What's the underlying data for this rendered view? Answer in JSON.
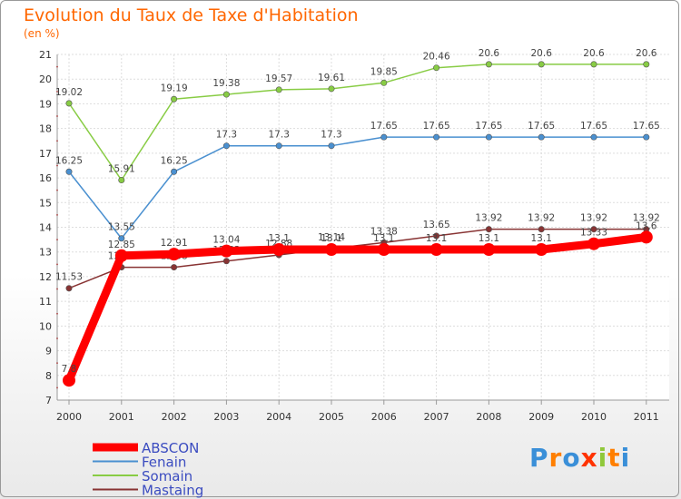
{
  "header": {
    "title": "Evolution du Taux de Taxe d'Habitation",
    "subtitle": "(en %)"
  },
  "logo": {
    "text": "Proxiti",
    "colors": [
      "#3a8fd8",
      "#ff7f00",
      "#3a8fd8",
      "#ff3300",
      "#8fc83a",
      "#ff7f00",
      "#3a8fd8"
    ]
  },
  "chart_data": {
    "type": "line",
    "title": "Evolution du Taux de Taxe d'Habitation",
    "ylabel": "(en %)",
    "xlabel": "",
    "x": [
      "2000",
      "2001",
      "2002",
      "2003",
      "2004",
      "2005",
      "2006",
      "2007",
      "2008",
      "2009",
      "2010",
      "2011"
    ],
    "ylim": [
      7,
      21
    ],
    "yticks": [
      7,
      8,
      9,
      10,
      11,
      12,
      13,
      14,
      15,
      16,
      17,
      18,
      19,
      20,
      21
    ],
    "grid": true,
    "legend_position": "bottom-left",
    "series": [
      {
        "name": "ABSCON",
        "color": "#ff0000",
        "thick": true,
        "values": [
          7.8,
          12.85,
          12.91,
          13.04,
          13.1,
          13.1,
          13.1,
          13.1,
          13.1,
          13.1,
          13.33,
          13.6
        ],
        "labels": [
          "7.8",
          "12.85",
          "12.91",
          "13.04",
          "13.1",
          "13.1",
          "13.1",
          "13.1",
          "13.1",
          "13.1",
          "13.33",
          "13.6"
        ]
      },
      {
        "name": "Fenain",
        "color": "#4a90d0",
        "thick": false,
        "values": [
          16.25,
          13.55,
          16.25,
          17.3,
          17.3,
          17.3,
          17.65,
          17.65,
          17.65,
          17.65,
          17.65,
          17.65
        ],
        "labels": [
          "16.25",
          "13.55",
          "16.25",
          "17.3",
          "17.3",
          "17.3",
          "17.65",
          "17.65",
          "17.65",
          "17.65",
          "17.65",
          "17.65"
        ]
      },
      {
        "name": "Somain",
        "color": "#88cc44",
        "thick": false,
        "values": [
          19.02,
          15.91,
          19.19,
          19.38,
          19.57,
          19.61,
          19.85,
          20.46,
          20.6,
          20.6,
          20.6,
          20.6
        ],
        "labels": [
          "19.02",
          "15.91",
          "19.19",
          "19.38",
          "19.57",
          "19.61",
          "19.85",
          "20.46",
          "20.6",
          "20.6",
          "20.6",
          "20.6"
        ]
      },
      {
        "name": "Mastaing",
        "color": "#883333",
        "thick": false,
        "values": [
          11.53,
          12.38,
          12.38,
          12.63,
          12.88,
          13.14,
          13.38,
          13.65,
          13.92,
          13.92,
          13.92,
          13.92
        ],
        "labels": [
          "11.53",
          "12.38",
          "12.38",
          "12.63",
          "12.88",
          "13.14",
          "13.38",
          "13.65",
          "13.92",
          "13.92",
          "13.92",
          "13.92"
        ]
      }
    ]
  }
}
